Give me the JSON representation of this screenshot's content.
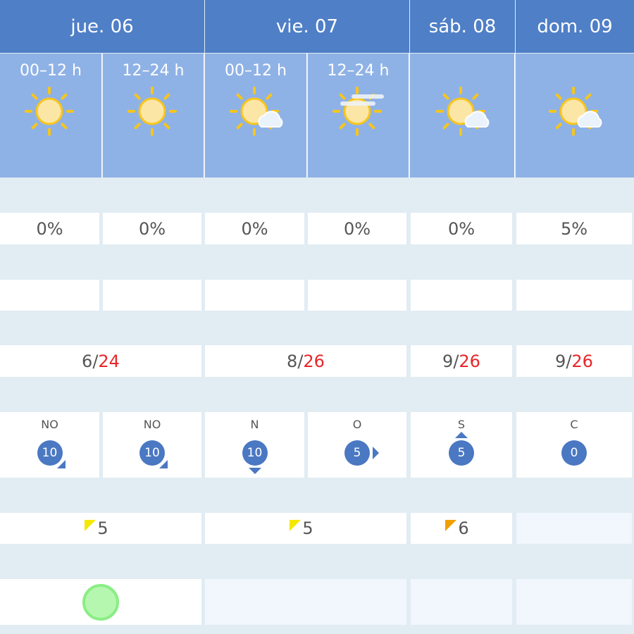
{
  "days": [
    {
      "label": "jue. 06"
    },
    {
      "label": "vie. 07"
    },
    {
      "label": "sáb. 08"
    },
    {
      "label": "dom. 09"
    }
  ],
  "periods": [
    {
      "label": "00–12 h",
      "icon": "sun-icon"
    },
    {
      "label": "12–24 h",
      "icon": "sun-icon"
    },
    {
      "label": "00–12 h",
      "icon": "sun-cloud-icon"
    },
    {
      "label": "12–24 h",
      "icon": "sun-haze-icon"
    },
    {
      "label": "",
      "icon": "sun-cloud-icon"
    },
    {
      "label": "",
      "icon": "sun-cloud-icon"
    }
  ],
  "precip": [
    "0%",
    "0%",
    "0%",
    "0%",
    "0%",
    "5%"
  ],
  "temps": [
    {
      "min": "6",
      "max": "24"
    },
    {
      "min": "8",
      "max": "26"
    },
    {
      "min": "9",
      "max": "26"
    },
    {
      "min": "9",
      "max": "26"
    }
  ],
  "temp_sep": " / ",
  "wind": [
    {
      "dir": "NO",
      "speed": "10"
    },
    {
      "dir": "NO",
      "speed": "10"
    },
    {
      "dir": "N",
      "speed": "10"
    },
    {
      "dir": "O",
      "speed": "5"
    },
    {
      "dir": "S",
      "speed": "5"
    },
    {
      "dir": "C",
      "speed": "0"
    }
  ],
  "uv": [
    {
      "value": "5",
      "color": "#f5e800"
    },
    {
      "value": "5",
      "color": "#f5e800"
    },
    {
      "value": "6",
      "color": "#f0a000"
    },
    {
      "value": "",
      "color": ""
    }
  ],
  "air_quality": {
    "color": "#b6f7b0",
    "border": "#8aee84"
  },
  "colors": {
    "header": "#4f7fc6",
    "subheader": "#8fb2e6",
    "wind": "#4a78c2",
    "max_temp": "#e8262b"
  }
}
